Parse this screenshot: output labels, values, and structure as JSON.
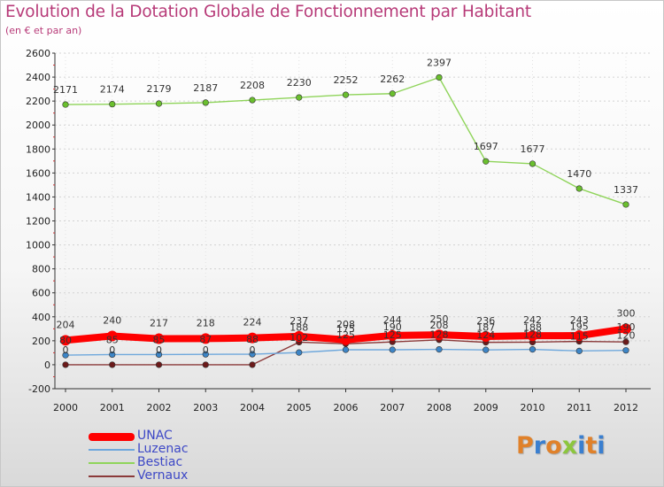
{
  "header": {
    "title": "Evolution de la Dotation Globale de Fonctionnement par Habitant",
    "subtitle": "(en € et par an)"
  },
  "logo": {
    "text": "Proxiti",
    "colors": [
      "#e0812a",
      "#3a7fd0",
      "#e0812a",
      "#8cc63e",
      "#3a7fd0",
      "#e0812a",
      "#3a7fd0"
    ]
  },
  "chart_data": {
    "type": "line",
    "x": [
      2000,
      2001,
      2002,
      2003,
      2004,
      2005,
      2006,
      2007,
      2008,
      2009,
      2010,
      2011,
      2012
    ],
    "ylim": [
      -200,
      2600
    ],
    "yticks": [
      -200,
      0,
      200,
      400,
      600,
      800,
      1000,
      1200,
      1400,
      1600,
      1800,
      2000,
      2200,
      2400,
      2600
    ],
    "grid": true,
    "legend_position": "bottom-left",
    "series": [
      {
        "name": "UNAC",
        "color": "#ff0000",
        "marker_color": "#ff0000",
        "width": "thick",
        "values": [
          204,
          240,
          217,
          218,
          224,
          237,
          208,
          244,
          250,
          236,
          242,
          243,
          300
        ],
        "labels": [
          "204",
          "240",
          "217",
          "218",
          "224",
          "237",
          "208",
          "244",
          "250",
          "236",
          "242",
          "243",
          "300"
        ]
      },
      {
        "name": "Luzenac",
        "color": "#6fa8dc",
        "marker_color": "#3d85c6",
        "width": "thin",
        "values": [
          80,
          85,
          85,
          87,
          88,
          102,
          125,
          125,
          128,
          124,
          128,
          115,
          120
        ],
        "labels": [
          "80",
          "85",
          "85",
          "87",
          "88",
          "102",
          "125",
          "125",
          "128",
          "124",
          "128",
          "115",
          "120"
        ]
      },
      {
        "name": "Bestiac",
        "color": "#8fd45a",
        "marker_color": "#6abf2e",
        "width": "thin",
        "values": [
          2171,
          2174,
          2179,
          2187,
          2208,
          2230,
          2252,
          2262,
          2397,
          1697,
          1677,
          1470,
          1337
        ],
        "labels": [
          "2171",
          "2174",
          "2179",
          "2187",
          "2208",
          "2230",
          "2252",
          "2262",
          "2397",
          "1697",
          "1677",
          "1470",
          "1337"
        ]
      },
      {
        "name": "Vernaux",
        "color": "#8b3a3a",
        "marker_color": "#6b1a1a",
        "width": "thin",
        "values": [
          0,
          0,
          0,
          0,
          0,
          188,
          175,
          190,
          208,
          187,
          188,
          195,
          190
        ],
        "labels": [
          "0",
          "0",
          "0",
          "0",
          "0",
          "188",
          "175",
          "190",
          "208",
          "187",
          "188",
          "195",
          "190"
        ]
      }
    ]
  }
}
